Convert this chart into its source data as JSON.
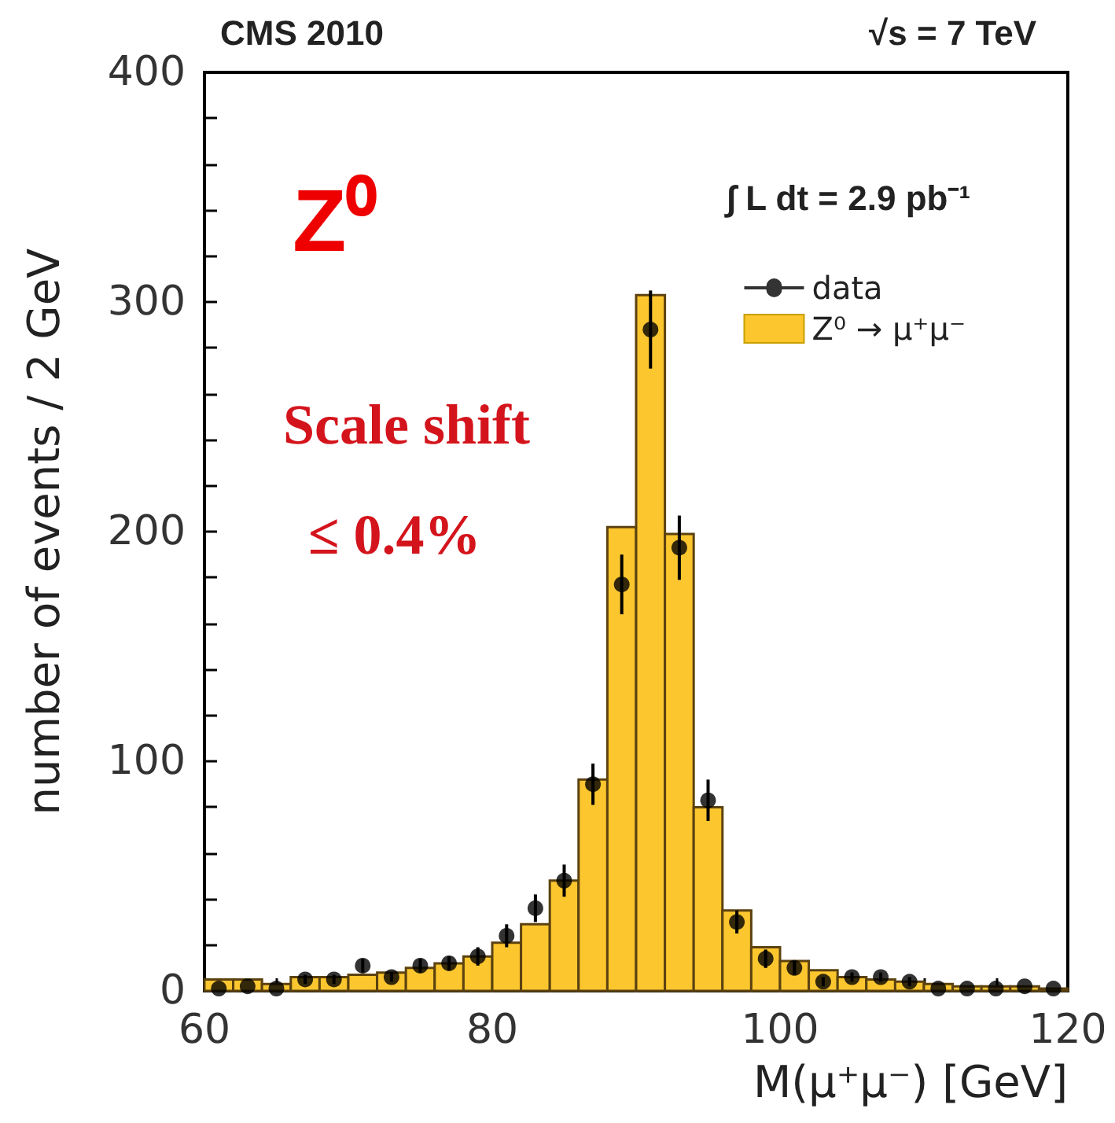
{
  "chart_data": {
    "type": "histogram",
    "xlabel": "M(μ⁺μ⁻) [GeV]",
    "ylabel": "number of events / 2 GeV",
    "annotations": [
      "CMS 2010",
      "√s = 7 TeV",
      "∫ L dt = 2.9 pb⁻¹",
      "Z⁰",
      "Scale shift",
      "≤ 0.4%"
    ],
    "series": [
      {
        "name": "Z⁰ → μ⁺μ⁻",
        "color": "#fcc62e",
        "bins": [
          60,
          62,
          64,
          66,
          68,
          70,
          72,
          74,
          76,
          78,
          80,
          82,
          84,
          86,
          88,
          90,
          92,
          94,
          96,
          98,
          100,
          102,
          104,
          106,
          108,
          110,
          112,
          114,
          116,
          118,
          120
        ],
        "values": [
          5,
          5,
          3,
          6,
          6,
          7,
          8,
          10,
          12,
          15,
          21,
          29,
          48,
          92,
          202,
          303,
          199,
          80,
          35,
          19,
          13,
          9,
          6,
          5,
          4,
          3,
          2,
          2,
          2,
          1
        ]
      },
      {
        "type": "scatter",
        "name": "data",
        "color": "#000000",
        "x": [
          61,
          63,
          65,
          67,
          69,
          71,
          73,
          75,
          77,
          79,
          81,
          83,
          85,
          87,
          89,
          91,
          93,
          95,
          97,
          99,
          101,
          103,
          105,
          107,
          109,
          111,
          113,
          115,
          117,
          119
        ],
        "values": [
          1,
          2,
          1,
          5,
          5,
          11,
          6,
          11,
          12,
          15,
          24,
          36,
          48,
          90,
          177,
          288,
          193,
          83,
          30,
          14,
          10,
          4,
          6,
          6,
          4,
          1,
          1,
          1,
          2,
          1
        ],
        "errors": [
          null,
          null,
          null,
          2,
          2,
          3,
          2,
          3,
          3,
          4,
          5,
          6,
          7,
          9,
          13,
          17,
          14,
          9,
          5,
          4,
          3,
          2,
          2,
          2,
          2,
          null,
          null,
          null,
          null,
          null
        ]
      }
    ],
    "xlim": [
      60,
      120
    ],
    "xticks": [
      60,
      {
        "value": 65,
        "label": null
      },
      {
        "value": 70,
        "label": null
      },
      {
        "value": 75,
        "label": null
      },
      80,
      {
        "value": 85,
        "label": null
      },
      {
        "value": 90,
        "label": null
      },
      {
        "value": 95,
        "label": null
      },
      100,
      {
        "value": 105,
        "label": null
      },
      {
        "value": 110,
        "label": null
      },
      {
        "value": 115,
        "label": null
      },
      120
    ],
    "ylim": [
      0,
      400
    ],
    "yticks": [
      0,
      {
        "value": 20,
        "label": null
      },
      {
        "value": 40,
        "label": null
      },
      {
        "value": 60,
        "label": null
      },
      {
        "value": 80,
        "label": null
      },
      100,
      {
        "value": 120,
        "label": null
      },
      {
        "value": 140,
        "label": null
      },
      {
        "value": 160,
        "label": null
      },
      {
        "value": 180,
        "label": null
      },
      200,
      {
        "value": 220,
        "label": null
      },
      {
        "value": 240,
        "label": null
      },
      {
        "value": 260,
        "label": null
      },
      {
        "value": 280,
        "label": null
      },
      300,
      {
        "value": 320,
        "label": null
      },
      {
        "value": 340,
        "label": null
      },
      {
        "value": 360,
        "label": null
      },
      {
        "value": 380,
        "label": null
      },
      400
    ],
    "grid": false,
    "legend": "top right",
    "marker": "circle"
  }
}
